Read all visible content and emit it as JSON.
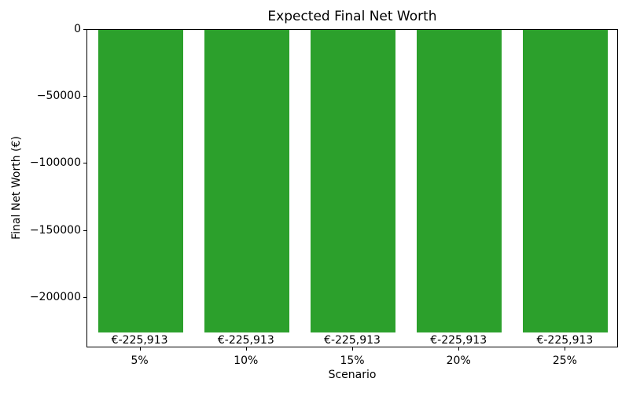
{
  "chart_data": {
    "type": "bar",
    "title": "Expected Final Net Worth",
    "xlabel": "Scenario",
    "ylabel": "Final Net Worth (€)",
    "categories": [
      "5%",
      "10%",
      "15%",
      "20%",
      "25%"
    ],
    "values": [
      -225913,
      -225913,
      -225913,
      -225913,
      -225913
    ],
    "bar_labels": [
      "€-225,913",
      "€-225,913",
      "€-225,913",
      "€-225,913",
      "€-225,913"
    ],
    "bar_color": "#2ca02c",
    "ylim": [
      -237650,
      0
    ],
    "ytick_values": [
      0,
      -50000,
      -100000,
      -150000,
      -200000
    ],
    "ytick_labels": [
      "0",
      "−50000",
      "−100000",
      "−150000",
      "−200000"
    ],
    "grid": false,
    "legend": null,
    "bar_width_fraction": 0.8
  }
}
